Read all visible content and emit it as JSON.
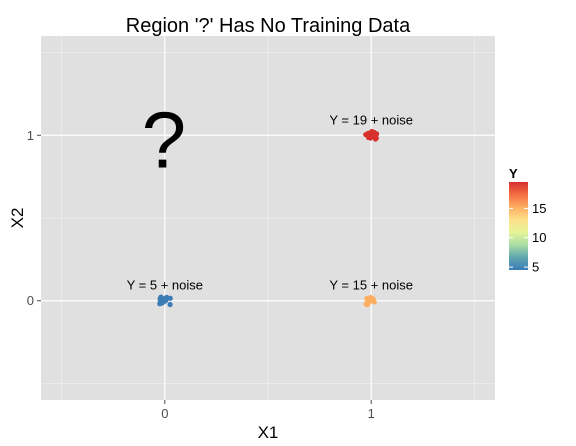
{
  "chart_data": {
    "type": "scatter",
    "title": "Region '?' Has No Training Data",
    "xlabel": "X1",
    "ylabel": "X2",
    "xlim": [
      -0.6,
      1.6
    ],
    "ylim": [
      -0.6,
      1.6
    ],
    "x_ticks": [
      0,
      1
    ],
    "x_tick_labels": [
      "0",
      "1"
    ],
    "y_ticks": [
      0,
      1
    ],
    "y_tick_labels": [
      "0",
      "1"
    ],
    "grid": true,
    "panel_background": "#e0e0e0",
    "question_mark": {
      "text": "?",
      "x": 0,
      "y": 1
    },
    "points": [
      {
        "x": 0,
        "y": 0,
        "value": 5,
        "color": "#3b7cb6"
      },
      {
        "x": 1,
        "y": 0,
        "value": 15,
        "color": "#fdae61"
      },
      {
        "x": 1,
        "y": 1,
        "value": 19,
        "color": "#d7312e"
      }
    ],
    "annotations": [
      {
        "text": "Y = 5 + noise",
        "x": 0,
        "y": 0
      },
      {
        "text": "Y = 15 + noise",
        "x": 1,
        "y": 0
      },
      {
        "text": "Y = 19 + noise",
        "x": 1,
        "y": 1
      }
    ],
    "legend": {
      "title": "Y",
      "position": "right",
      "range": [
        4.5,
        19.5
      ],
      "ticks": [
        5,
        10,
        15
      ],
      "tick_labels": [
        "5",
        "10",
        "15"
      ],
      "colors": [
        "#3b7cb6",
        "#5fa6b0",
        "#abdda4",
        "#e6f598",
        "#fee08b",
        "#fdae61",
        "#f46d43",
        "#d7312e"
      ]
    }
  }
}
